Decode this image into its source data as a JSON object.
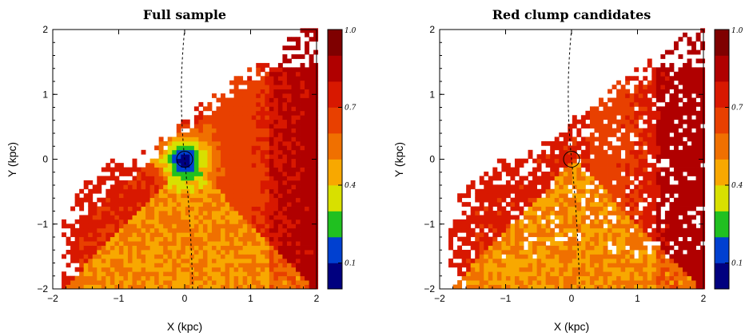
{
  "chart_data": [
    {
      "type": "heatmap",
      "title": "Full sample",
      "xlabel": "X (kpc)",
      "ylabel": "Y (kpc)",
      "xlim": [
        -2,
        2
      ],
      "ylim": [
        -2,
        2
      ],
      "xticks": [
        "−2",
        "−1",
        "0",
        "1",
        "2"
      ],
      "yticks": [
        "−2",
        "−1",
        "0",
        "1",
        "2"
      ],
      "sun_position": [
        0,
        0
      ],
      "colorbar": {
        "range": [
          0,
          1.0
        ],
        "levels": 10,
        "ticks": [
          "0.1",
          "0.4",
          "0.7",
          "1.0"
        ],
        "colors": [
          "#00007f",
          "#0040d0",
          "#20c020",
          "#d8e000",
          "#f8a800",
          "#f07000",
          "#e84000",
          "#d81800",
          "#b00000",
          "#7f0000"
        ]
      },
      "value_model": {
        "description_of_cells": "fraction per 0.067 kpc cell; low near Sun (~0.05), ~0.5 toward inner disc, ~0.75 in outer wedge",
        "center_min": 0.05,
        "inner_wedge": 0.5,
        "outer_wedge": 0.76
      }
    },
    {
      "type": "heatmap",
      "title": "Red clump candidates",
      "xlabel": "X (kpc)",
      "ylabel": "Y (kpc)",
      "xlim": [
        -2,
        2
      ],
      "ylim": [
        -2,
        2
      ],
      "xticks": [
        "−2",
        "−1",
        "0",
        "1",
        "2"
      ],
      "yticks": [
        "−2",
        "−1",
        "0",
        "1",
        "2"
      ],
      "sun_position": [
        0,
        0
      ],
      "colorbar": {
        "range": [
          0,
          1.0
        ],
        "levels": 10,
        "ticks": [
          "0.1",
          "0.4",
          "0.7",
          "1.0"
        ],
        "colors": [
          "#00007f",
          "#0040d0",
          "#20c020",
          "#d8e000",
          "#f8a800",
          "#f07000",
          "#e84000",
          "#d81800",
          "#b00000",
          "#7f0000"
        ]
      },
      "value_model": {
        "center_min": 0.55,
        "inner_wedge": 0.5,
        "outer_wedge": 0.78
      }
    }
  ]
}
